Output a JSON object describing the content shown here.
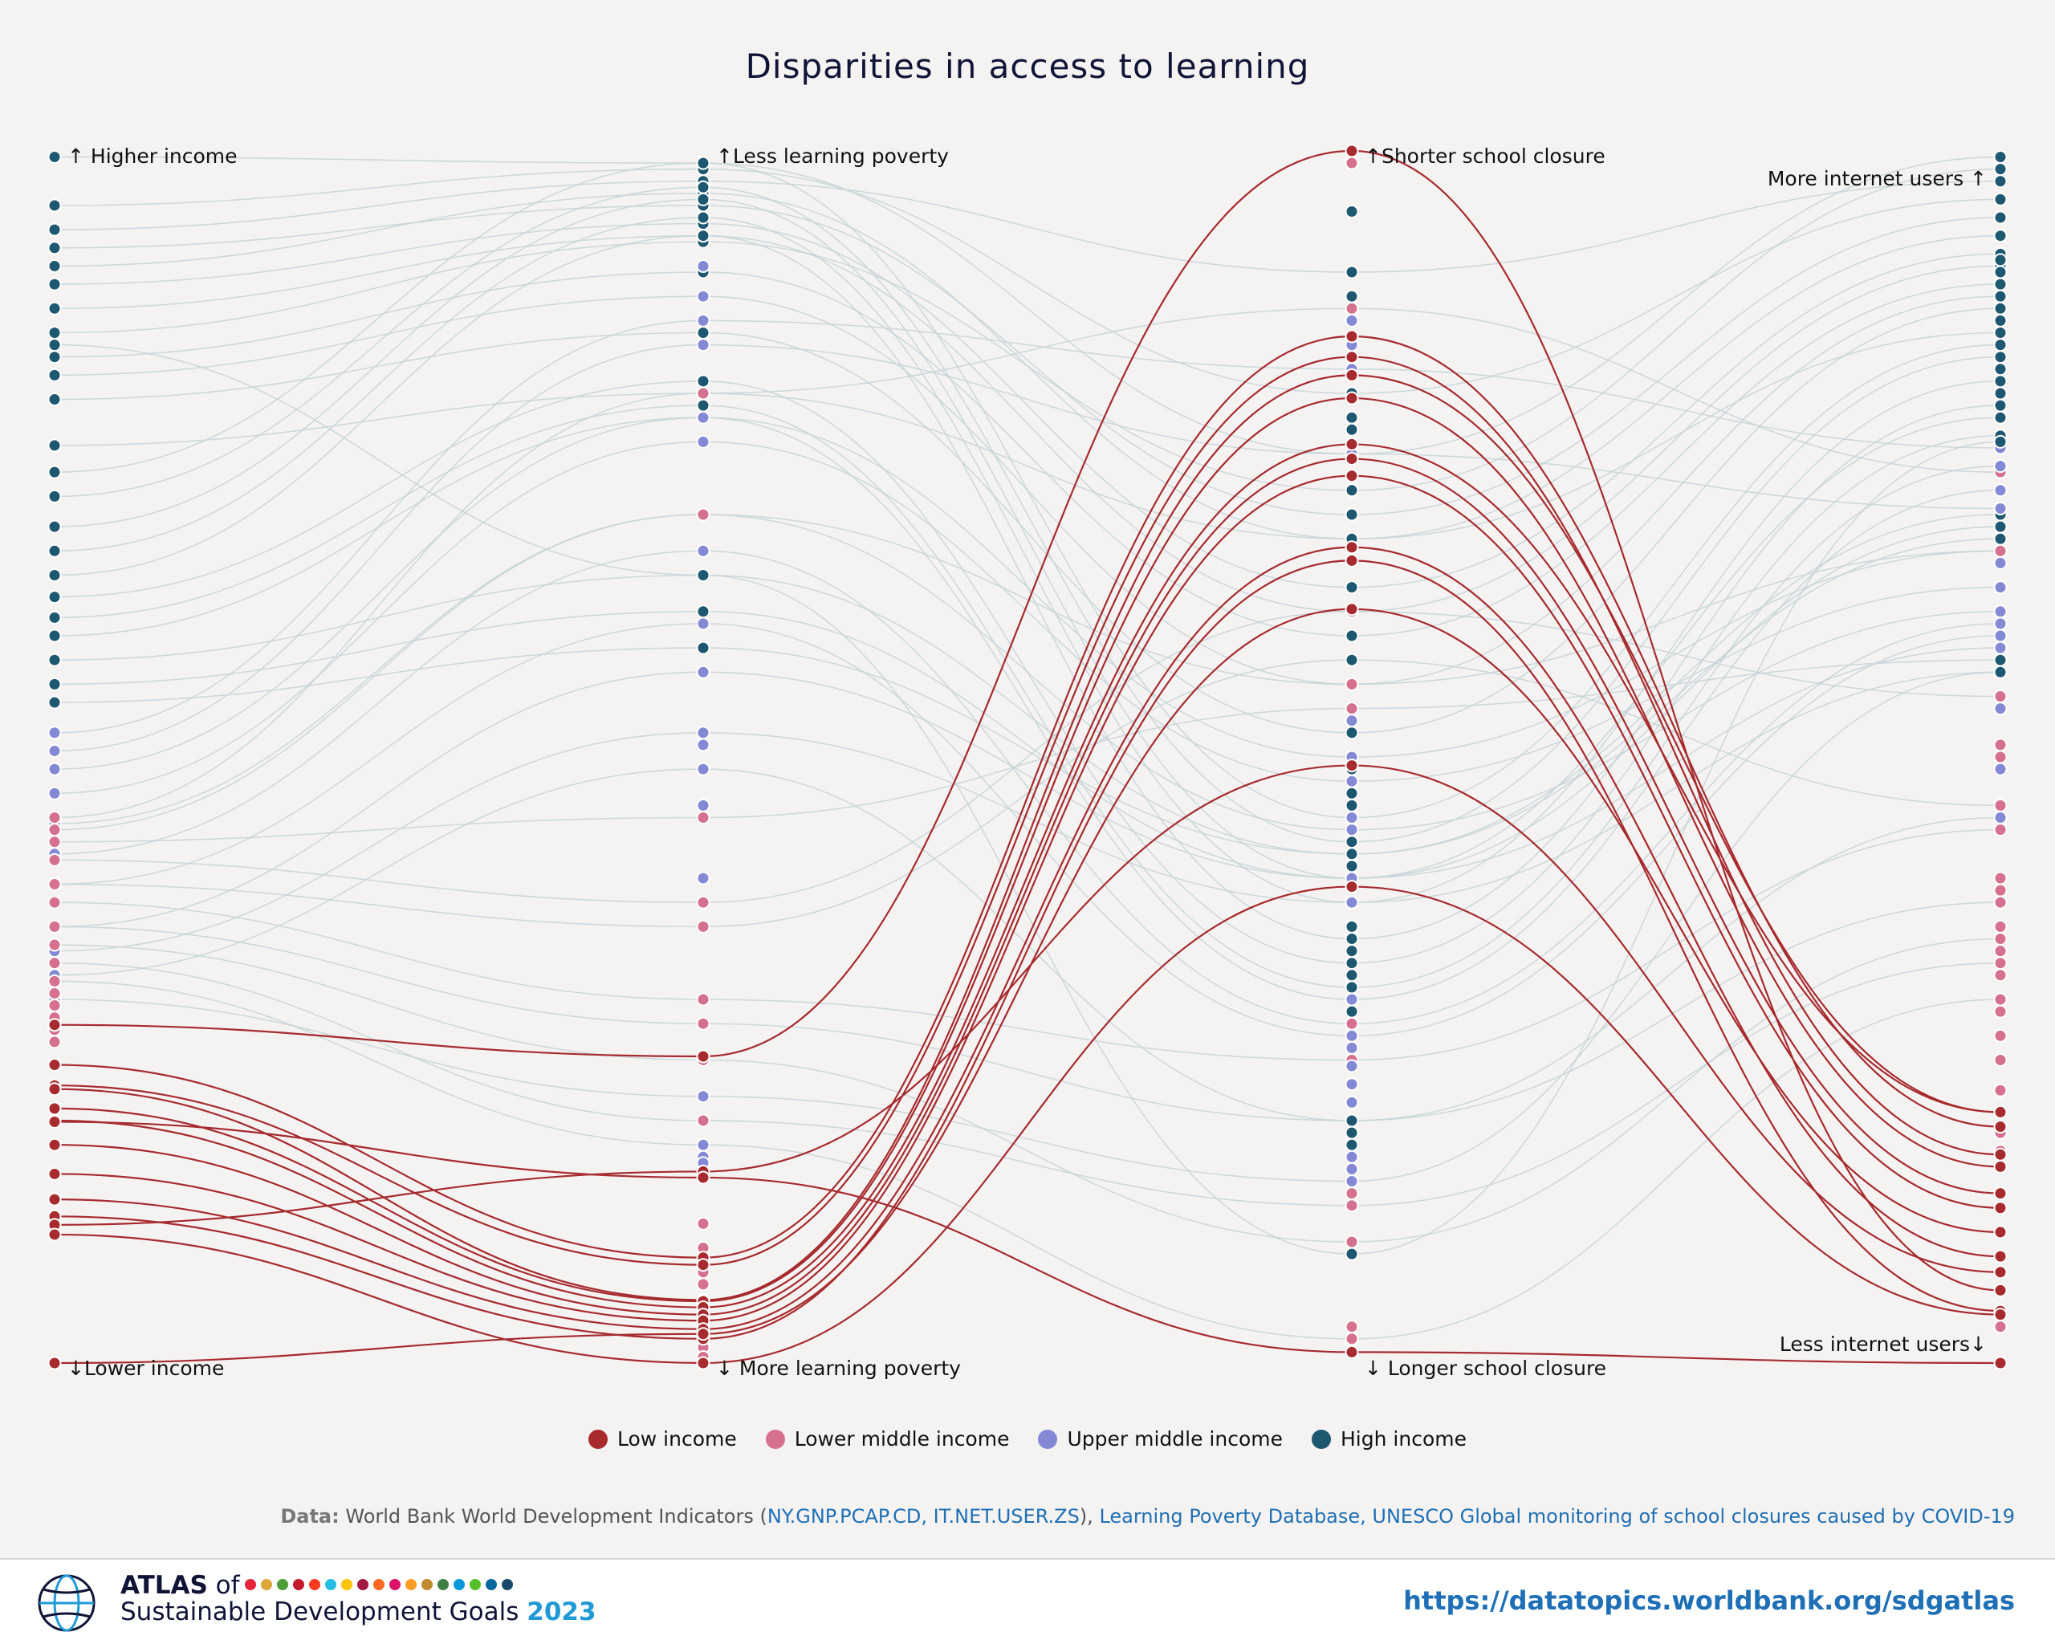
{
  "title": "Disparities in access to learning",
  "chart_data": {
    "type": "parallel-coordinates",
    "axes": [
      {
        "top_label": "↑ Higher income",
        "bottom_label": "↓Lower income"
      },
      {
        "top_label": "↑Less learning poverty",
        "bottom_label": "↓ More learning poverty"
      },
      {
        "top_label": "↑Shorter school closure",
        "bottom_label": "↓ Longer school closure"
      },
      {
        "top_label": "More internet users ↑",
        "bottom_label": "Less internet users↓"
      }
    ],
    "value_scale": "rank within axis, 0 = bottom, 1 = top",
    "groups": [
      {
        "name": "Low income",
        "color": "#a62a2e"
      },
      {
        "name": "Lower middle income",
        "color": "#d6708f"
      },
      {
        "name": "Upper middle income",
        "color": "#8489d6"
      },
      {
        "name": "High income",
        "color": "#1d5770"
      }
    ],
    "line_colors": {
      "highlighted": "#a62a2e",
      "background": "#c5d3d8"
    },
    "highlighted_group": "Low income",
    "connected_lines": [
      {
        "group": "Low income",
        "values": [
          0.279,
          0.253,
          1.0,
          0.06
        ]
      },
      {
        "group": "Low income",
        "values": [
          0.246,
          0.087,
          0.847,
          0.195
        ]
      },
      {
        "group": "Low income",
        "values": [
          0.229,
          0.081,
          0.83,
          0.172
        ]
      },
      {
        "group": "Low income",
        "values": [
          0.226,
          0.052,
          0.815,
          0.207
        ]
      },
      {
        "group": "Low income",
        "values": [
          0.21,
          0.051,
          0.796,
          0.162
        ]
      },
      {
        "group": "Low income",
        "values": [
          0.2,
          0.046,
          0.758,
          0.207
        ]
      },
      {
        "group": "Low income",
        "values": [
          0.18,
          0.04,
          0.746,
          0.14
        ]
      },
      {
        "group": "Low income",
        "values": [
          0.156,
          0.035,
          0.732,
          0.128
        ]
      },
      {
        "group": "Low income",
        "values": [
          0.135,
          0.028,
          0.673,
          0.088
        ]
      },
      {
        "group": "Low income",
        "values": [
          0.121,
          0.02,
          0.662,
          0.043
        ]
      },
      {
        "group": "Low income",
        "values": [
          0.114,
          0.158,
          0.493,
          0.075
        ]
      },
      {
        "group": "Low income",
        "values": [
          0.0,
          0.024,
          0.622,
          0.108
        ]
      },
      {
        "group": "Low income",
        "values": [
          0.199,
          0.153,
          0.009,
          0.0
        ]
      },
      {
        "group": "Low income",
        "values": [
          0.106,
          0.0,
          0.393,
          0.04
        ]
      }
    ],
    "background_lines": [
      {
        "group": "High income",
        "values": [
          0.995,
          0.99,
          0.75,
          0.995
        ]
      },
      {
        "group": "High income",
        "values": [
          0.955,
          0.985,
          0.8,
          0.96
        ]
      },
      {
        "group": "High income",
        "values": [
          0.935,
          0.975,
          0.9,
          0.975
        ]
      },
      {
        "group": "High income",
        "values": [
          0.92,
          0.955,
          0.7,
          0.945
        ]
      },
      {
        "group": "High income",
        "values": [
          0.905,
          0.965,
          0.68,
          0.93
        ]
      },
      {
        "group": "High income",
        "values": [
          0.89,
          0.94,
          0.64,
          0.915
        ]
      },
      {
        "group": "High income",
        "values": [
          0.87,
          0.93,
          0.62,
          0.905
        ]
      },
      {
        "group": "High income",
        "values": [
          0.85,
          0.925,
          0.72,
          0.985
        ]
      },
      {
        "group": "High income",
        "values": [
          0.83,
          0.9,
          0.6,
          0.89
        ]
      },
      {
        "group": "High income",
        "values": [
          0.815,
          0.88,
          0.56,
          0.88
        ]
      },
      {
        "group": "High income",
        "values": [
          0.795,
          0.85,
          0.52,
          0.87
        ]
      },
      {
        "group": "High income",
        "values": [
          0.757,
          0.8,
          0.68,
          0.85
        ]
      },
      {
        "group": "High income",
        "values": [
          0.735,
          0.99,
          0.45,
          0.84
        ]
      },
      {
        "group": "High income",
        "values": [
          0.715,
          0.97,
          0.43,
          0.83
        ]
      },
      {
        "group": "High income",
        "values": [
          0.69,
          0.96,
          0.4,
          0.78
        ]
      },
      {
        "group": "High income",
        "values": [
          0.67,
          0.945,
          0.38,
          0.81
        ]
      },
      {
        "group": "High income",
        "values": [
          0.65,
          0.93,
          0.35,
          0.79
        ]
      },
      {
        "group": "High income",
        "values": [
          0.632,
          0.81,
          0.33,
          0.765
        ]
      },
      {
        "group": "High income",
        "values": [
          0.615,
          0.79,
          0.31,
          0.74
        ]
      },
      {
        "group": "High income",
        "values": [
          0.6,
          0.78,
          0.3,
          0.72
        ]
      },
      {
        "group": "High income",
        "values": [
          0.58,
          0.65,
          0.42,
          0.7
        ]
      },
      {
        "group": "High income",
        "values": [
          0.56,
          0.62,
          0.4,
          0.69
        ]
      },
      {
        "group": "High income",
        "values": [
          0.545,
          0.59,
          0.42,
          0.68
        ]
      },
      {
        "group": "Upper middle income",
        "values": [
          0.52,
          0.86,
          0.82,
          0.755
        ]
      },
      {
        "group": "Upper middle income",
        "values": [
          0.505,
          0.84,
          0.75,
          0.705
        ]
      },
      {
        "group": "Upper middle income",
        "values": [
          0.49,
          0.78,
          0.5,
          0.67
        ]
      },
      {
        "group": "Upper middle income",
        "values": [
          0.47,
          0.76,
          0.48,
          0.64
        ]
      },
      {
        "group": "Upper middle income",
        "values": [
          0.445,
          0.7,
          0.44,
          0.62
        ]
      },
      {
        "group": "Upper middle income",
        "values": [
          0.42,
          0.67,
          0.28,
          0.61
        ]
      },
      {
        "group": "Upper middle income",
        "values": [
          0.395,
          0.61,
          0.27,
          0.6
        ]
      },
      {
        "group": "Upper middle income",
        "values": [
          0.36,
          0.57,
          0.4,
          0.59
        ]
      },
      {
        "group": "Upper middle income",
        "values": [
          0.34,
          0.52,
          0.38,
          0.57
        ]
      },
      {
        "group": "Upper middle income",
        "values": [
          0.32,
          0.49,
          0.2,
          0.45
        ]
      },
      {
        "group": "Upper middle income",
        "values": [
          0.3,
          0.22,
          0.15,
          0.57
        ]
      },
      {
        "group": "Lower middle income",
        "values": [
          0.45,
          0.8,
          0.87,
          0.735
        ]
      },
      {
        "group": "Lower middle income",
        "values": [
          0.44,
          0.7,
          0.56,
          0.67
        ]
      },
      {
        "group": "Lower middle income",
        "values": [
          0.43,
          0.45,
          0.54,
          0.58
        ]
      },
      {
        "group": "Lower middle income",
        "values": [
          0.415,
          0.38,
          0.62,
          0.55
        ]
      },
      {
        "group": "Lower middle income",
        "values": [
          0.395,
          0.36,
          0.58,
          0.46
        ]
      },
      {
        "group": "Lower middle income",
        "values": [
          0.38,
          0.3,
          0.25,
          0.44
        ]
      },
      {
        "group": "Lower middle income",
        "values": [
          0.36,
          0.28,
          0.2,
          0.38
        ]
      },
      {
        "group": "Lower middle income",
        "values": [
          0.345,
          0.25,
          0.1,
          0.35
        ]
      },
      {
        "group": "Lower middle income",
        "values": [
          0.33,
          0.2,
          0.13,
          0.33
        ]
      },
      {
        "group": "Lower middle income",
        "values": [
          0.315,
          0.18,
          0.02,
          0.3
        ]
      },
      {
        "group": "High income",
        "values": [
          0.84,
          0.65,
          0.09,
          0.76
        ]
      }
    ],
    "extra_dots": [
      {
        "axis": 0,
        "group": "Lower middle income",
        "values": [
          0.305,
          0.295,
          0.285,
          0.275,
          0.265
        ]
      },
      {
        "axis": 1,
        "group": "Lower middle income",
        "values": [
          0.115,
          0.095,
          0.075,
          0.065,
          0.045,
          0.03,
          0.013,
          0.005
        ]
      },
      {
        "axis": 1,
        "group": "Upper middle income",
        "values": [
          0.18,
          0.17,
          0.165,
          0.46,
          0.4,
          0.51,
          0.88,
          0.905
        ]
      },
      {
        "axis": 2,
        "group": "Lower middle income",
        "values": [
          0.99,
          0.56,
          0.3,
          0.28,
          0.23,
          0.2,
          0.16,
          0.14,
          0.13,
          0.03,
          0.02
        ]
      },
      {
        "axis": 2,
        "group": "Upper middle income",
        "values": [
          0.86,
          0.84,
          0.53,
          0.47,
          0.45,
          0.32,
          0.3,
          0.26,
          0.245,
          0.23,
          0.215,
          0.17,
          0.16,
          0.15
        ]
      },
      {
        "axis": 2,
        "group": "High income",
        "values": [
          0.95,
          0.88,
          0.78,
          0.77,
          0.6,
          0.58,
          0.49,
          0.47,
          0.46,
          0.43,
          0.41,
          0.36,
          0.35,
          0.34,
          0.32,
          0.31,
          0.29,
          0.19,
          0.18,
          0.2
        ]
      },
      {
        "axis": 3,
        "group": "Lower middle income",
        "values": [
          0.51,
          0.5,
          0.4,
          0.39,
          0.38,
          0.36,
          0.36,
          0.34,
          0.32,
          0.3,
          0.29,
          0.27,
          0.25,
          0.225,
          0.19,
          0.175,
          0.03
        ]
      },
      {
        "axis": 3,
        "group": "Upper middle income",
        "values": [
          0.74,
          0.72,
          0.66,
          0.64,
          0.62,
          0.54,
          0.49
        ]
      },
      {
        "axis": 3,
        "group": "High income",
        "values": [
          0.93,
          0.91,
          0.9,
          0.86,
          0.82,
          0.8,
          0.58,
          0.57
        ]
      }
    ]
  },
  "legend": [
    {
      "label": "Low income",
      "color": "#a62a2e"
    },
    {
      "label": "Lower middle income",
      "color": "#d6708f"
    },
    {
      "label": "Upper middle income",
      "color": "#8489d6"
    },
    {
      "label": "High income",
      "color": "#1d5770"
    }
  ],
  "source": {
    "label": "Data:",
    "text_1": "World Bank World Development Indicators (",
    "link_1": "NY.GNP.PCAP.CD, IT.NET.USER.ZS",
    "text_2": "), ",
    "link_2": "Learning Poverty Database, UNESCO Global monitoring of school closures caused by COVID-19"
  },
  "footer": {
    "atlas_bold": "ATLAS",
    "atlas_of": " of",
    "subtitle": "Sustainable Development Goals ",
    "year": "2023",
    "url": "https://datatopics.worldbank.org/sdgatlas",
    "sdg_colors": [
      "#e5243b",
      "#dda63a",
      "#4c9f38",
      "#c5192d",
      "#ff3a21",
      "#26bde2",
      "#fcc30b",
      "#a21942",
      "#fd6925",
      "#dd1367",
      "#fd9d24",
      "#bf8b2e",
      "#3f7e44",
      "#0a97d9",
      "#56c02b",
      "#00689d",
      "#19486a"
    ]
  }
}
